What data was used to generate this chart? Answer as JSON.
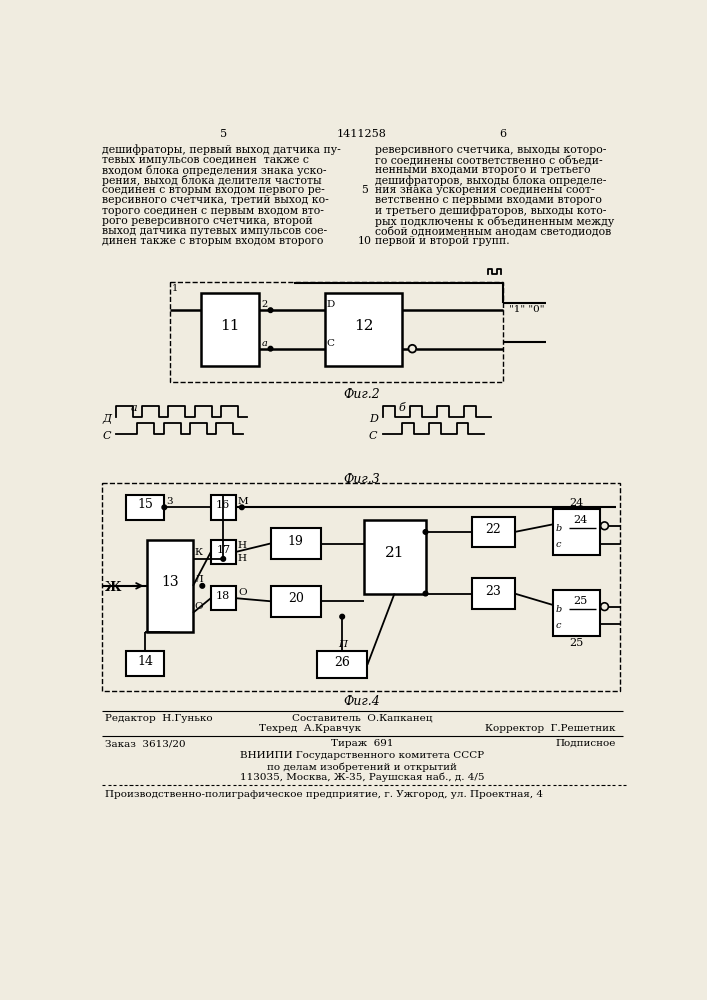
{
  "bg_color": "#f0ece0",
  "page_num_left": "5",
  "page_num_center": "1411258",
  "page_num_right": "6",
  "left_lines": [
    "дешифраторы, первый выход датчика пу-",
    "тевых импульсов соединен  также с",
    "входом блока определения знака уско-",
    "рения, выход блока делителя частоты",
    "соединен с вторым входом первого ре-",
    "версивного счетчика, третий выход ко-",
    "торого соединен с первым входом вто-",
    "рого реверсивного счетчика, второй",
    "выход датчика путевых импульсов сое-",
    "динен также с вторым входом второго"
  ],
  "right_lines": [
    "реверсивного счетчика, выходы которо-",
    "го соединены соответственно с объеди-",
    "ненными входами второго и третьего",
    "дешифраторов, выходы блока определе-",
    "ния знака ускорения соединены соот-",
    "ветственно с первыми входами второго",
    "и третьего дешифраторов, выходы кото-",
    "рых подключены к объединенным между",
    "собой одноименным анодам светодиодов",
    "первой и второй групп."
  ],
  "fig2_caption": "Фиг.2",
  "fig3_caption": "Фиг.3",
  "fig4_caption": "Фиг.4",
  "editor_line": "Редактор  Н.Гунько",
  "composer_line": "Составитель  О.Капканец",
  "techred_line": "Техред  А.Кравчук",
  "corrector_line": "Корректор  Г.Решетник",
  "order_line": "Заказ  3613/20",
  "tirazh_line": "Тираж  691",
  "podpisnoe_line": "Подписное",
  "vnipi1": "ВНИИПИ Государственного комитета СССР",
  "vnipi2": "по делам изобретений и открытий",
  "vnipi3": "113035, Москва, Ж-35, Раушская наб., д. 4/5",
  "factory": "Производственно-полиграфическое предприятие, г. Ужгород, ул. Проектная, 4"
}
